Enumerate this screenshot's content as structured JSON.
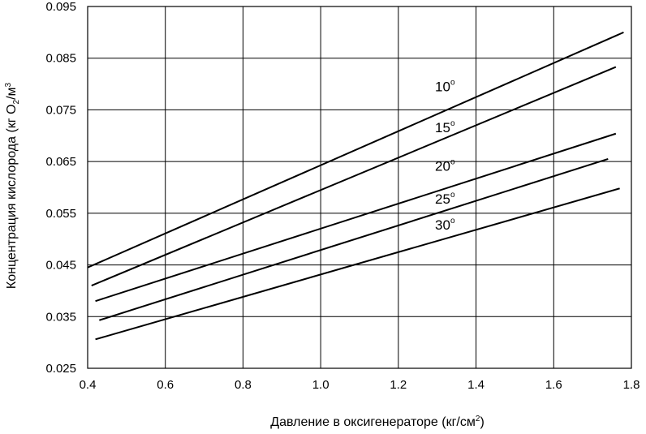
{
  "chart_data": {
    "type": "line",
    "title": "",
    "xlabel": "Давление в оксигенераторе (кг/см",
    "xlabel_sup": "2",
    "xlabel_end": ")",
    "ylabel_parts": [
      "Концентрация кислорода (кг O",
      "2",
      "/м",
      "3",
      ""
    ],
    "xlim": [
      0.4,
      1.8
    ],
    "ylim": [
      0.025,
      0.095
    ],
    "x_ticks": [
      "0.4",
      "0.6",
      "0.8",
      "1.0",
      "1.2",
      "1.4",
      "1.6",
      "1.8"
    ],
    "y_ticks": [
      "0.025",
      "0.035",
      "0.045",
      "0.055",
      "0.065",
      "0.075",
      "0.085",
      "0.095"
    ],
    "grid": true,
    "series": [
      {
        "name": "10",
        "unit": "o",
        "x": [
          0.4,
          1.78
        ],
        "y": [
          0.0445,
          0.09
        ]
      },
      {
        "name": "15",
        "unit": "o",
        "x": [
          0.41,
          1.76
        ],
        "y": [
          0.041,
          0.0833
        ]
      },
      {
        "name": "20",
        "unit": "o",
        "x": [
          0.42,
          1.76
        ],
        "y": [
          0.038,
          0.0704
        ]
      },
      {
        "name": "25",
        "unit": "o",
        "x": [
          0.43,
          1.74
        ],
        "y": [
          0.0343,
          0.0655
        ]
      },
      {
        "name": "30",
        "unit": "o",
        "x": [
          0.42,
          1.77
        ],
        "y": [
          0.0306,
          0.0598
        ]
      }
    ]
  }
}
